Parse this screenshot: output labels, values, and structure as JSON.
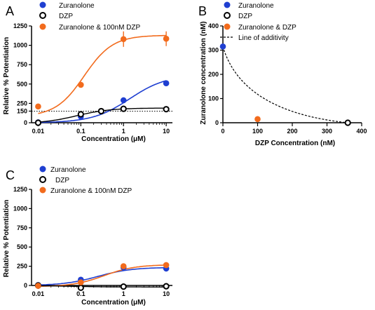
{
  "panels": [
    {
      "letter": "A",
      "xlabel": "Concentration (μM)",
      "ylabel": "Relative % Potentiation",
      "legend": [
        "Zuranolone",
        "DZP",
        "Zuranolone & 100nM DZP"
      ],
      "yticks": [
        "0",
        "150",
        "250",
        "500",
        "750",
        "1000",
        "1250"
      ],
      "xticks": [
        "0.01",
        "0.1",
        "1",
        "10"
      ]
    },
    {
      "letter": "B",
      "xlabel": "DZP Concentration (nM)",
      "ylabel": "Zuranolone concentration (nM)",
      "legend": [
        "Zuranolone",
        "DZP",
        "Zuranolone & DZP",
        "Line of additivity"
      ],
      "yticks": [
        "0",
        "100",
        "200",
        "300",
        "400"
      ],
      "xticks": [
        "0",
        "100",
        "200",
        "300",
        "400"
      ]
    },
    {
      "letter": "C",
      "xlabel": "Concentration (μM)",
      "ylabel": "Relative % Potentiation",
      "legend": [
        "Zuranolone",
        "DZP",
        "Zuranolone & 100nM DZP"
      ],
      "yticks": [
        "0",
        "250",
        "500",
        "750",
        "1000",
        "1250"
      ],
      "xticks": [
        "0.01",
        "0.1",
        "1",
        "10"
      ]
    }
  ],
  "colors": {
    "zuranolone": "#1f3fd1",
    "dzp": "#000000",
    "combo": "#f26b1d"
  },
  "chart_data": [
    {
      "type": "line",
      "xscale": "log",
      "xlim": [
        0.007,
        14
      ],
      "ylim": [
        0,
        1250
      ],
      "reference_line": 150,
      "x": [
        0.01,
        0.1,
        0.3,
        1,
        10
      ],
      "series": [
        {
          "name": "Zuranolone",
          "x": [
            0.01,
            0.1,
            1,
            10
          ],
          "values": [
            5,
            80,
            290,
            510
          ]
        },
        {
          "name": "DZP",
          "x": [
            0.01,
            0.1,
            0.3,
            1,
            10
          ],
          "values": [
            0,
            110,
            150,
            180,
            175
          ]
        },
        {
          "name": "Zuranolone & 100nM DZP",
          "x": [
            0.01,
            0.1,
            1,
            10
          ],
          "values": [
            210,
            490,
            1080,
            1085
          ],
          "errors": [
            0,
            0,
            100,
            95
          ]
        }
      ]
    },
    {
      "type": "scatter",
      "xlim": [
        0,
        400
      ],
      "ylim": [
        0,
        400
      ],
      "series": [
        {
          "name": "Zuranolone",
          "x": [
            0
          ],
          "values": [
            315
          ]
        },
        {
          "name": "DZP",
          "x": [
            360
          ],
          "values": [
            0
          ]
        },
        {
          "name": "Zuranolone & DZP",
          "x": [
            100
          ],
          "values": [
            15
          ]
        },
        {
          "name": "Line of additivity",
          "x": [
            0,
            360
          ],
          "values": [
            315,
            0
          ]
        }
      ]
    },
    {
      "type": "line",
      "xscale": "log",
      "xlim": [
        0.007,
        14
      ],
      "ylim": [
        0,
        1250
      ],
      "series": [
        {
          "name": "Zuranolone",
          "x": [
            0.01,
            0.1,
            1,
            10
          ],
          "values": [
            5,
            75,
            235,
            220
          ]
        },
        {
          "name": "DZP",
          "x": [
            0.01,
            0.1,
            1,
            10
          ],
          "values": [
            0,
            -30,
            -15,
            -10
          ]
        },
        {
          "name": "Zuranolone & 100nM DZP",
          "x": [
            0.01,
            0.1,
            1,
            10
          ],
          "values": [
            -5,
            40,
            250,
            265
          ]
        }
      ]
    }
  ]
}
